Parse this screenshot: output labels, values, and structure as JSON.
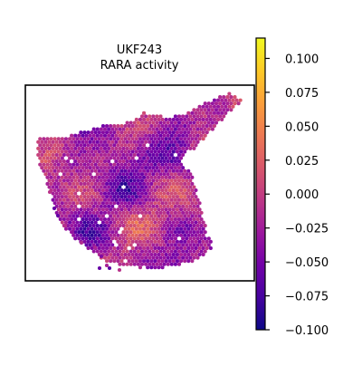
{
  "chart_data": {
    "type": "heatmap",
    "title": "UKF243",
    "subtitle": "RARA activity",
    "xlabel": "",
    "ylabel": "",
    "colormap": "plasma",
    "colorbar": {
      "min": -0.1,
      "max": 0.115,
      "ticks": [
        0.1,
        0.075,
        0.05,
        0.025,
        0.0,
        -0.025,
        -0.05,
        -0.075,
        -0.1
      ],
      "tick_labels": [
        "0.100",
        "0.075",
        "0.050",
        "0.025",
        "0.000",
        "−0.025",
        "−0.050",
        "−0.075",
        "−0.100"
      ]
    },
    "axes_ticks": "none",
    "grid": false,
    "legend": "none",
    "notes_visible": ""
  },
  "colors": {
    "plasma_stops": [
      "#0d0887",
      "#46039f",
      "#7201a8",
      "#9c179e",
      "#bd3786",
      "#d8576b",
      "#ed7953",
      "#fb9f3a",
      "#fdca26",
      "#f0f921"
    ],
    "frame": "#000000",
    "background": "#ffffff"
  }
}
